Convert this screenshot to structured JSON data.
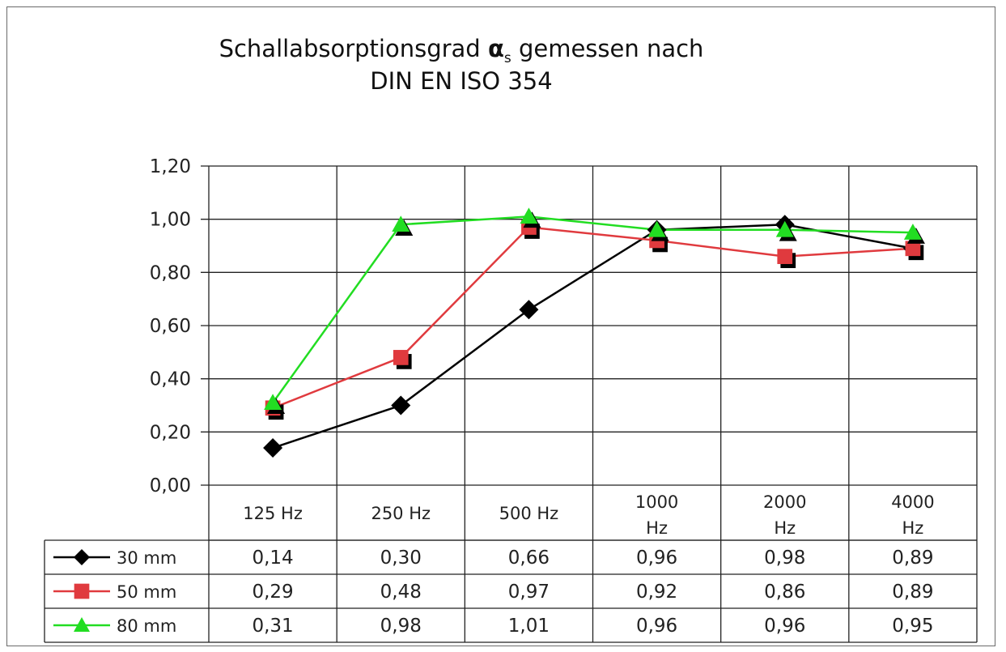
{
  "chart_data": {
    "type": "line",
    "title_line1_pre": "Schallabsorptionsgrad ",
    "title_symbol": "α",
    "title_subscript": "s",
    "title_line1_post": "  gemessen nach",
    "title_line2": "DIN EN ISO 354",
    "categories": [
      [
        "125 Hz"
      ],
      [
        "250 Hz"
      ],
      [
        "500 Hz"
      ],
      [
        "1000",
        "Hz"
      ],
      [
        "2000",
        "Hz"
      ],
      [
        "4000",
        "Hz"
      ]
    ],
    "ylim": [
      0,
      1.2
    ],
    "yticks": [
      "0,00",
      "0,20",
      "0,40",
      "0,60",
      "0,80",
      "1,00",
      "1,20"
    ],
    "ytick_values": [
      0,
      0.2,
      0.4,
      0.6,
      0.8,
      1.0,
      1.2
    ],
    "grid": true,
    "legend_placement": "data table below chart",
    "series": [
      {
        "name": "30 mm",
        "marker": "diamond",
        "color": "#000000",
        "values": [
          0.14,
          0.3,
          0.66,
          0.96,
          0.98,
          0.89
        ],
        "labels": [
          "0,14",
          "0,30",
          "0,66",
          "0,96",
          "0,98",
          "0,89"
        ]
      },
      {
        "name": "50 mm",
        "marker": "square",
        "color": "#e03a3e",
        "values": [
          0.29,
          0.48,
          0.97,
          0.92,
          0.86,
          0.89
        ],
        "labels": [
          "0,29",
          "0,48",
          "0,97",
          "0,92",
          "0,86",
          "0,89"
        ]
      },
      {
        "name": "80 mm",
        "marker": "triangle",
        "color": "#22dd22",
        "values": [
          0.31,
          0.98,
          1.01,
          0.96,
          0.96,
          0.95
        ],
        "labels": [
          "0,31",
          "0,98",
          "1,01",
          "0,96",
          "0,96",
          "0,95"
        ]
      }
    ]
  }
}
